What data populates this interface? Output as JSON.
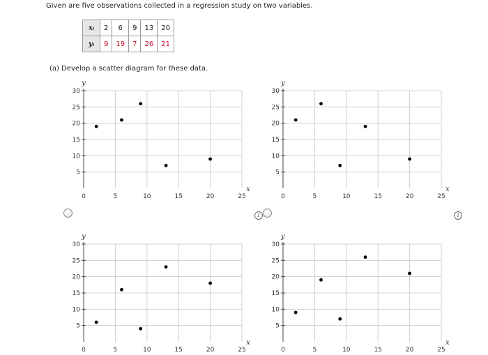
{
  "question": {
    "intro": "Given are five observations collected in a regression study on two variables.",
    "part_a": "(a)   Develop a scatter diagram for these data."
  },
  "observations": {
    "x_header": "xᵢ",
    "y_header": "yᵢ",
    "x": [
      "2",
      "6",
      "9",
      "13",
      "20"
    ],
    "y": [
      "9",
      "19",
      "7",
      "26",
      "21"
    ]
  },
  "icons": {
    "info": "i"
  },
  "colors": {
    "y_values": "#c8102e",
    "points": "#000000",
    "grid": "#d0d0d0"
  },
  "chart_data": [
    {
      "type": "scatter",
      "x": [
        2,
        6,
        9,
        13,
        20
      ],
      "y": [
        19,
        21,
        26,
        7,
        9
      ],
      "xlabel": "x",
      "ylabel": "y",
      "xlim": [
        0,
        25
      ],
      "ylim": [
        0,
        30
      ],
      "xticks": [
        0,
        5,
        10,
        15,
        20,
        25
      ],
      "yticks": [
        5,
        10,
        15,
        20,
        25,
        30
      ],
      "grid": true
    },
    {
      "type": "scatter",
      "x": [
        2,
        6,
        9,
        13,
        20
      ],
      "y": [
        21,
        26,
        7,
        19,
        9
      ],
      "xlabel": "x",
      "ylabel": "y",
      "xlim": [
        0,
        25
      ],
      "ylim": [
        0,
        30
      ],
      "xticks": [
        0,
        5,
        10,
        15,
        20,
        25
      ],
      "yticks": [
        5,
        10,
        15,
        20,
        25,
        30
      ],
      "grid": true
    },
    {
      "type": "scatter",
      "x": [
        2,
        6,
        9,
        13,
        20
      ],
      "y": [
        6,
        16,
        4,
        23,
        18
      ],
      "xlabel": "x",
      "ylabel": "y",
      "xlim": [
        0,
        25
      ],
      "ylim": [
        0,
        30
      ],
      "xticks": [
        0,
        5,
        10,
        15,
        20,
        25
      ],
      "yticks": [
        5,
        10,
        15,
        20,
        25,
        30
      ],
      "grid": true
    },
    {
      "type": "scatter",
      "x": [
        2,
        6,
        9,
        13,
        20
      ],
      "y": [
        9,
        19,
        7,
        26,
        21
      ],
      "xlabel": "x",
      "ylabel": "y",
      "xlim": [
        0,
        25
      ],
      "ylim": [
        0,
        30
      ],
      "xticks": [
        0,
        5,
        10,
        15,
        20,
        25
      ],
      "yticks": [
        5,
        10,
        15,
        20,
        25,
        30
      ],
      "grid": true
    }
  ]
}
